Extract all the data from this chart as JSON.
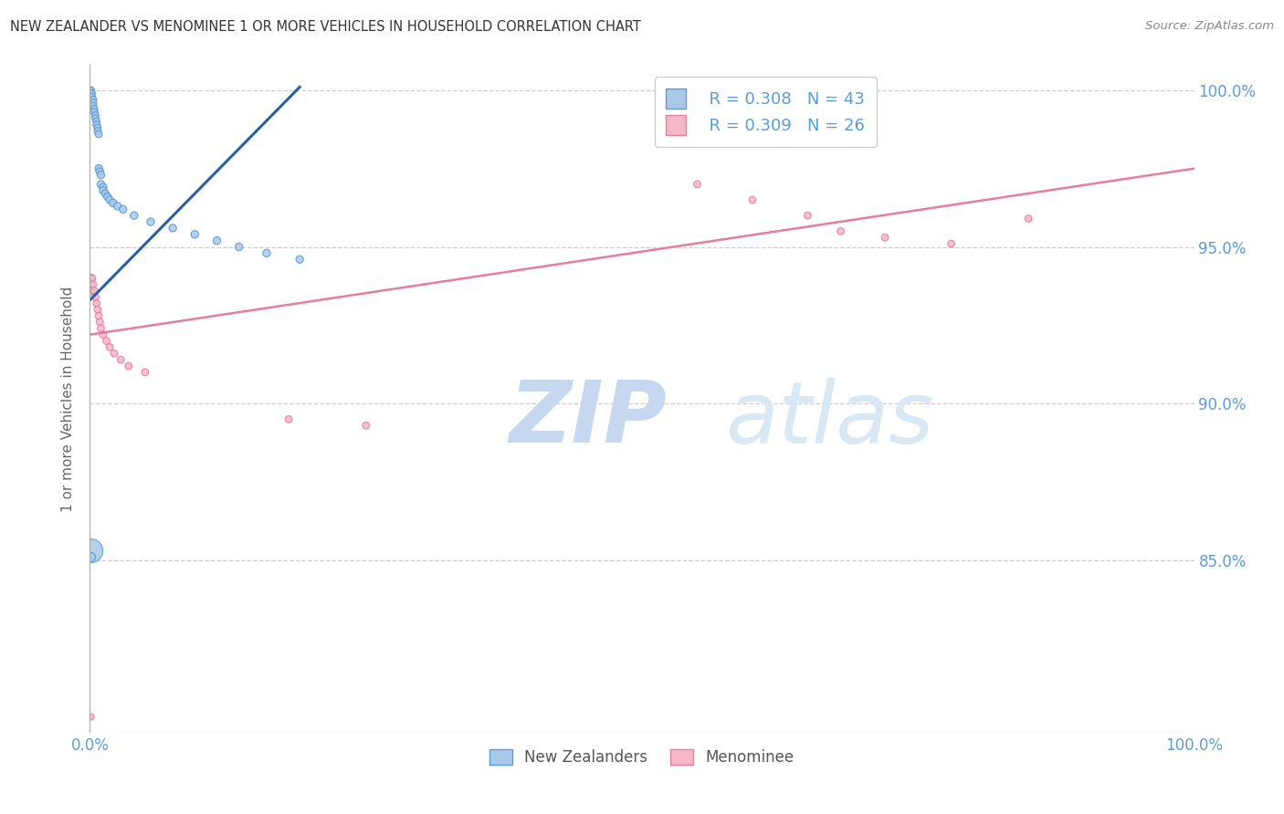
{
  "title": "NEW ZEALANDER VS MENOMINEE 1 OR MORE VEHICLES IN HOUSEHOLD CORRELATION CHART",
  "source": "Source: ZipAtlas.com",
  "ylabel": "1 or more Vehicles in Household",
  "legend_blue_r": "R = 0.308",
  "legend_blue_n": "N = 43",
  "legend_pink_r": "R = 0.309",
  "legend_pink_n": "N = 26",
  "legend_label1": "New Zealanders",
  "legend_label2": "Menominee",
  "xlim": [
    0.0,
    1.0
  ],
  "ylim": [
    0.795,
    1.008
  ],
  "yticks": [
    0.85,
    0.9,
    0.95,
    1.0
  ],
  "ytick_labels": [
    "85.0%",
    "90.0%",
    "95.0%",
    "100.0%"
  ],
  "xtick_labels": [
    "0.0%",
    "100.0%"
  ],
  "blue_color": "#aac9e8",
  "pink_color": "#f4b8c8",
  "blue_edge_color": "#5b9bd5",
  "pink_edge_color": "#e87ba0",
  "blue_line_color": "#2b5fa5",
  "pink_line_color": "#e87ba0",
  "title_color": "#333333",
  "axis_label_color": "#5b9bd5",
  "grid_color": "#cccccc",
  "watermark_zip_color": "#c5d8ef",
  "watermark_atlas_color": "#d8e8f5",
  "blue_scatter_x": [
    0.001,
    0.001,
    0.001,
    0.001,
    0.002,
    0.002,
    0.003,
    0.003,
    0.003,
    0.004,
    0.004,
    0.005,
    0.005,
    0.006,
    0.006,
    0.007,
    0.007,
    0.008,
    0.008,
    0.009,
    0.01,
    0.01,
    0.012,
    0.012,
    0.014,
    0.016,
    0.018,
    0.021,
    0.025,
    0.03,
    0.04,
    0.055,
    0.075,
    0.095,
    0.115,
    0.135,
    0.16,
    0.19,
    0.001,
    0.001,
    0.001,
    0.001,
    0.001
  ],
  "blue_scatter_y": [
    1.0,
    1.0,
    1.0,
    0.999,
    0.999,
    0.998,
    0.997,
    0.996,
    0.995,
    0.994,
    0.993,
    0.992,
    0.991,
    0.99,
    0.989,
    0.988,
    0.987,
    0.986,
    0.975,
    0.974,
    0.973,
    0.97,
    0.969,
    0.968,
    0.967,
    0.966,
    0.965,
    0.964,
    0.963,
    0.962,
    0.96,
    0.958,
    0.956,
    0.954,
    0.952,
    0.95,
    0.948,
    0.946,
    0.94,
    0.938,
    0.936,
    0.853,
    0.851
  ],
  "blue_scatter_size": [
    25,
    25,
    25,
    25,
    25,
    25,
    30,
    30,
    30,
    30,
    30,
    30,
    30,
    30,
    30,
    30,
    30,
    30,
    35,
    35,
    35,
    35,
    35,
    35,
    35,
    35,
    35,
    35,
    35,
    35,
    35,
    35,
    35,
    35,
    35,
    35,
    35,
    35,
    35,
    35,
    35,
    350,
    50
  ],
  "pink_scatter_x": [
    0.001,
    0.002,
    0.003,
    0.004,
    0.005,
    0.006,
    0.007,
    0.008,
    0.009,
    0.01,
    0.012,
    0.015,
    0.018,
    0.022,
    0.028,
    0.035,
    0.05,
    0.55,
    0.6,
    0.65,
    0.68,
    0.72,
    0.78,
    0.85,
    0.18,
    0.25
  ],
  "pink_scatter_y": [
    0.8,
    0.94,
    0.938,
    0.936,
    0.934,
    0.932,
    0.93,
    0.928,
    0.926,
    0.924,
    0.922,
    0.92,
    0.918,
    0.916,
    0.914,
    0.912,
    0.91,
    0.97,
    0.965,
    0.96,
    0.955,
    0.953,
    0.951,
    0.959,
    0.895,
    0.893
  ],
  "pink_scatter_size": [
    25,
    30,
    30,
    30,
    30,
    30,
    30,
    30,
    30,
    30,
    30,
    30,
    30,
    30,
    30,
    30,
    30,
    30,
    30,
    30,
    30,
    30,
    30,
    30,
    30,
    30
  ],
  "blue_trendline_x": [
    0.0,
    0.19
  ],
  "blue_trendline_y": [
    0.933,
    1.001
  ],
  "pink_trendline_x": [
    0.0,
    1.0
  ],
  "pink_trendline_y": [
    0.922,
    0.975
  ]
}
